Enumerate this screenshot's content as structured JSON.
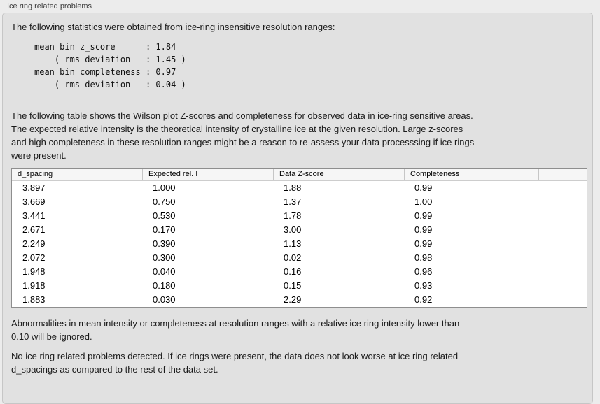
{
  "panel": {
    "title": "Ice ring related problems",
    "stats_intro": "The following statistics were obtained from ice-ring insensitive resolution ranges:",
    "stats_block": "mean bin z_score      : 1.84\n    ( rms deviation   : 1.45 )\nmean bin completeness : 0.97\n    ( rms deviation   : 0.04 )",
    "stats": {
      "mean_bin_z_score": "1.84",
      "z_score_rms_deviation": "1.45",
      "mean_bin_completeness": "0.97",
      "completeness_rms_deviation": "0.04"
    },
    "table_description": "The following table shows the Wilson plot Z-scores and completeness for observed data in ice-ring sensitive areas.\nThe expected relative intensity is the theoretical intensity of crystalline ice at the given resolution. Large z-scores\nand high completeness in these resolution ranges might be a reason to re-assess your data processsing if ice rings\nwere present.",
    "ignore_note": "Abnormalities in mean intensity or completeness at resolution ranges with a relative ice ring intensity lower than\n0.10 will be ignored.",
    "conclusion": "No ice ring related problems detected. If ice rings were present, the data does not look worse at ice ring related\nd_spacings as compared to the rest of the data set."
  },
  "table": {
    "columns": [
      "d_spacing",
      "Expected rel. I",
      "Data Z-score",
      "Completeness",
      ""
    ],
    "rows": [
      [
        "3.897",
        "1.000",
        "1.88",
        "0.99"
      ],
      [
        "3.669",
        "0.750",
        "1.37",
        "1.00"
      ],
      [
        "3.441",
        "0.530",
        "1.78",
        "0.99"
      ],
      [
        "2.671",
        "0.170",
        "3.00",
        "0.99"
      ],
      [
        "2.249",
        "0.390",
        "1.13",
        "0.99"
      ],
      [
        "2.072",
        "0.300",
        "0.02",
        "0.98"
      ],
      [
        "1.948",
        "0.040",
        "0.16",
        "0.96"
      ],
      [
        "1.918",
        "0.180",
        "0.15",
        "0.93"
      ],
      [
        "1.883",
        "0.030",
        "2.29",
        "0.92"
      ]
    ]
  },
  "colors": {
    "outer_background": "#ececec",
    "groupbox_fill": "#e1e1e1",
    "groupbox_border": "#c6c6c6",
    "table_border": "#8e8e8e",
    "table_header_fill": "#f6f6f6",
    "text": "#1a1a1a"
  }
}
